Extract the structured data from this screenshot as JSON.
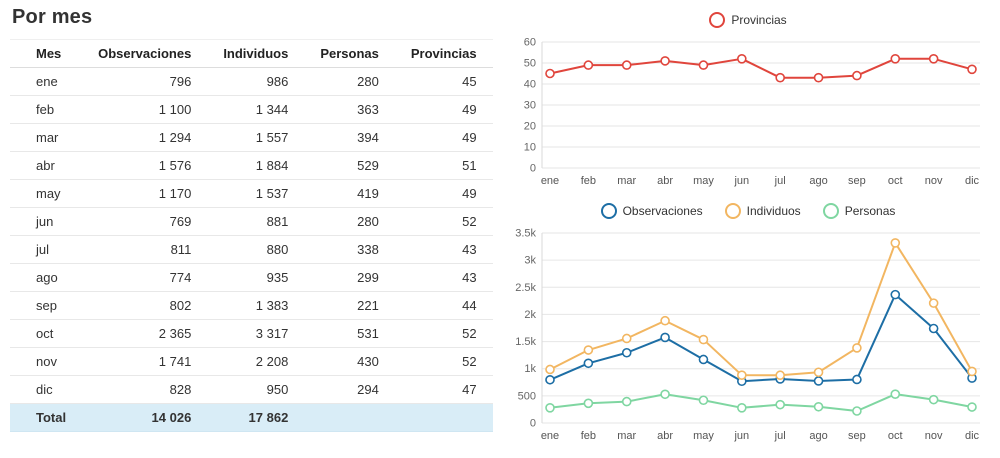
{
  "page_title": "Por mes",
  "table": {
    "columns": [
      "Mes",
      "Observaciones",
      "Individuos",
      "Personas",
      "Provincias"
    ],
    "rows": [
      [
        "ene",
        "796",
        "986",
        "280",
        "45"
      ],
      [
        "feb",
        "1 100",
        "1 344",
        "363",
        "49"
      ],
      [
        "mar",
        "1 294",
        "1 557",
        "394",
        "49"
      ],
      [
        "abr",
        "1 576",
        "1 884",
        "529",
        "51"
      ],
      [
        "may",
        "1 170",
        "1 537",
        "419",
        "49"
      ],
      [
        "jun",
        "769",
        "881",
        "280",
        "52"
      ],
      [
        "jul",
        "811",
        "880",
        "338",
        "43"
      ],
      [
        "ago",
        "774",
        "935",
        "299",
        "43"
      ],
      [
        "sep",
        "802",
        "1 383",
        "221",
        "44"
      ],
      [
        "oct",
        "2 365",
        "3 317",
        "531",
        "52"
      ],
      [
        "nov",
        "1 741",
        "2 208",
        "430",
        "52"
      ],
      [
        "dic",
        "828",
        "950",
        "294",
        "47"
      ]
    ],
    "total": {
      "label": "Total",
      "observaciones": "14 026",
      "individuos": "17 862",
      "personas": "",
      "provincias": ""
    }
  },
  "colors": {
    "provincias": "#e0453c",
    "observaciones": "#1d6ea5",
    "individuos": "#f2b661",
    "personas": "#7fd6a1",
    "total_row_bg": "#d9edf7",
    "gridline": "#e6e6e6"
  },
  "chart_data": [
    {
      "type": "line",
      "title": "",
      "categories": [
        "ene",
        "feb",
        "mar",
        "abr",
        "may",
        "jun",
        "jul",
        "ago",
        "sep",
        "oct",
        "nov",
        "dic"
      ],
      "series": [
        {
          "name": "Provincias",
          "color": "#e0453c",
          "values": [
            45,
            49,
            49,
            51,
            49,
            52,
            43,
            43,
            44,
            52,
            52,
            47
          ]
        }
      ],
      "ylim": [
        0,
        60
      ],
      "yticks": [
        0,
        10,
        20,
        30,
        40,
        50,
        60
      ],
      "ytick_labels": [
        "0",
        "10",
        "20",
        "30",
        "40",
        "50",
        "60"
      ],
      "legend_position": "top",
      "grid": true
    },
    {
      "type": "line",
      "title": "",
      "categories": [
        "ene",
        "feb",
        "mar",
        "abr",
        "may",
        "jun",
        "jul",
        "ago",
        "sep",
        "oct",
        "nov",
        "dic"
      ],
      "series": [
        {
          "name": "Observaciones",
          "color": "#1d6ea5",
          "values": [
            796,
            1100,
            1294,
            1576,
            1170,
            769,
            811,
            774,
            802,
            2365,
            1741,
            828
          ]
        },
        {
          "name": "Individuos",
          "color": "#f2b661",
          "values": [
            986,
            1344,
            1557,
            1884,
            1537,
            881,
            880,
            935,
            1383,
            3317,
            2208,
            950
          ]
        },
        {
          "name": "Personas",
          "color": "#7fd6a1",
          "values": [
            280,
            363,
            394,
            529,
            419,
            280,
            338,
            299,
            221,
            531,
            430,
            294
          ]
        }
      ],
      "ylim": [
        0,
        3500
      ],
      "yticks": [
        0,
        500,
        1000,
        1500,
        2000,
        2500,
        3000,
        3500
      ],
      "ytick_labels": [
        "0",
        "500",
        "1k",
        "1.5k",
        "2k",
        "2.5k",
        "3k",
        "3.5k"
      ],
      "legend_position": "top",
      "grid": true
    }
  ]
}
